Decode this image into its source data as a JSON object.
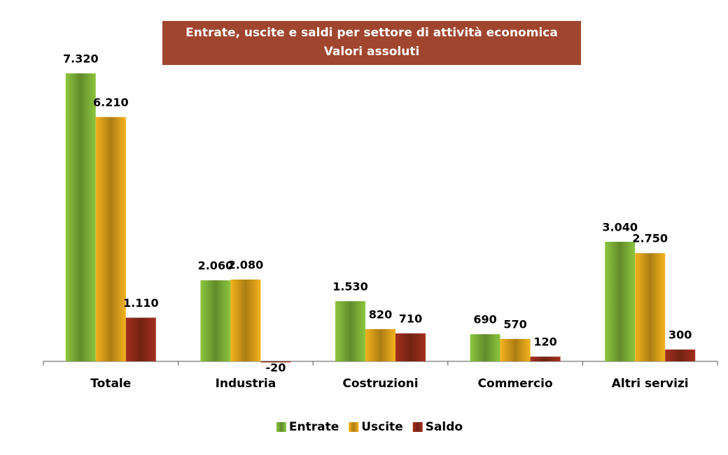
{
  "chart_data": {
    "type": "bar",
    "title": "Entrate, uscite e saldi per settore di attività economica",
    "subtitle": "Valori assoluti",
    "categories": [
      "Totale",
      "Industria",
      "Costruzioni",
      "Commercio",
      "Altri servizi"
    ],
    "series": [
      {
        "name": "Entrate",
        "color": "#8cc63e",
        "values": [
          7320,
          2060,
          1530,
          690,
          3040
        ],
        "value_labels": [
          "7.320",
          "2.060",
          "1.530",
          "690",
          "3.040"
        ]
      },
      {
        "name": "Uscite",
        "color": "#f5b21c",
        "values": [
          6210,
          2080,
          820,
          570,
          2750
        ],
        "value_labels": [
          "6.210",
          "2.080",
          "820",
          "570",
          "2.750"
        ]
      },
      {
        "name": "Saldo",
        "color": "#a3301c",
        "values": [
          1110,
          -20,
          710,
          120,
          300
        ],
        "value_labels": [
          "1.110",
          "-20",
          "710",
          "120",
          "300"
        ]
      }
    ]
  }
}
